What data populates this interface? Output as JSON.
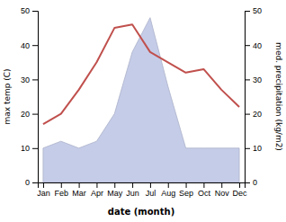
{
  "chart_data": {
    "type": "line",
    "categories": [
      "Jan",
      "Feb",
      "Mar",
      "Apr",
      "May",
      "Jun",
      "Jul",
      "Aug",
      "Sep",
      "Oct",
      "Nov",
      "Dec"
    ],
    "xlabel": "date (month)",
    "ylabel": "max temp (C)",
    "y2label": "med. precipitation (kg/m2)",
    "ylim": [
      0,
      50
    ],
    "yticks": [
      0,
      10,
      20,
      30,
      40,
      50
    ],
    "y2lim": [
      0,
      50
    ],
    "y2ticks": [
      0,
      10,
      20,
      30,
      40,
      50
    ],
    "grid": false,
    "series": [
      {
        "type": "line",
        "color": "#c0504d",
        "values": [
          17,
          20,
          27,
          35,
          45,
          46,
          38,
          35,
          32,
          33,
          27,
          22
        ]
      },
      {
        "type": "area",
        "axis": "y2",
        "color": "#c5cce8",
        "values": [
          10,
          12,
          10,
          12,
          20,
          38,
          48,
          28,
          10,
          10,
          10,
          10
        ]
      }
    ]
  }
}
